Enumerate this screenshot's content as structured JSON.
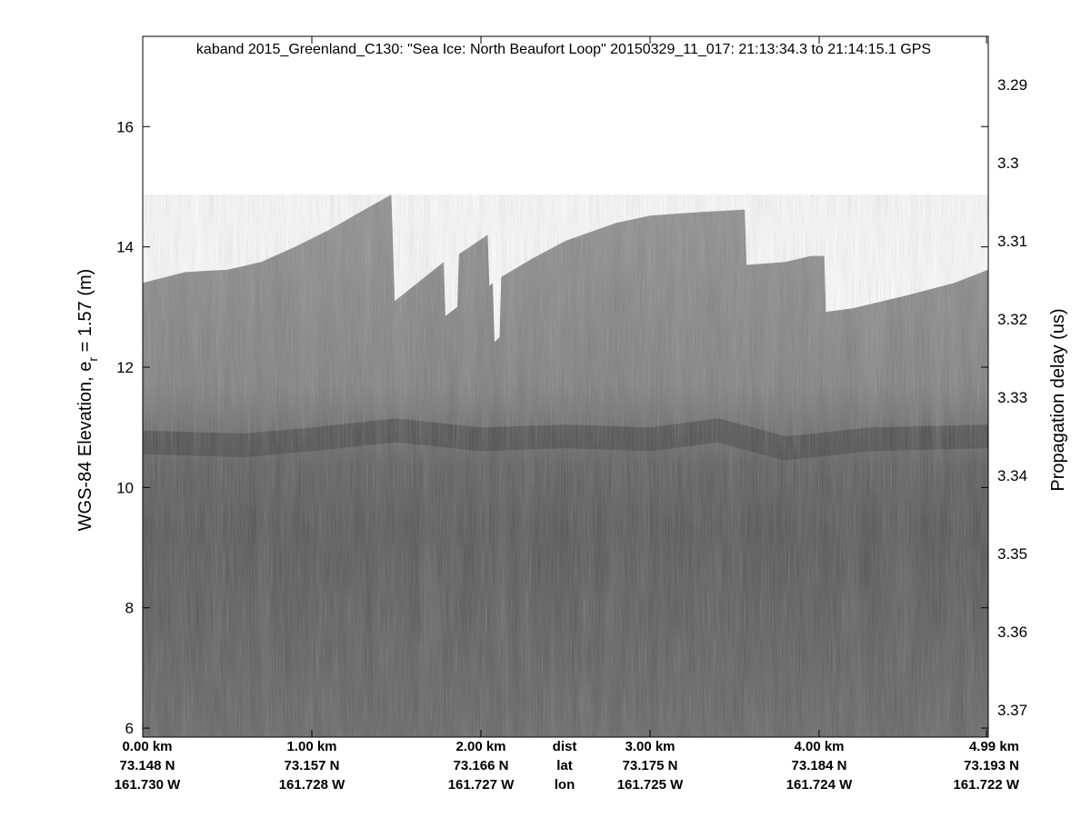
{
  "chart_data": {
    "type": "heatmap",
    "title": "kaband 2015_Greenland_C130: \"Sea Ice: North Beaufort Loop\"  20150329_11_017: 21:13:34.3 to 21:14:15.1 GPS",
    "ylabel_main": "WGS-84 Elevation, e",
    "ylabel_sub": "r",
    "ylabel_tail": " = 1.57 (m)",
    "y2label": "Propagation delay (us)",
    "ylim": [
      5.85,
      17.5
    ],
    "xlim_km": [
      0,
      5.0
    ],
    "y_ticks": [
      "6",
      "8",
      "10",
      "12",
      "14",
      "16"
    ],
    "y_tick_values": [
      6,
      8,
      10,
      12,
      14,
      16
    ],
    "y2_ticks": [
      "3.29",
      "3.3",
      "3.31",
      "3.32",
      "3.33",
      "3.34",
      "3.35",
      "3.36",
      "3.37"
    ],
    "y2_tick_elev": [
      16.7,
      15.4,
      14.1,
      12.8,
      11.5,
      10.2,
      8.9,
      7.6,
      6.3
    ],
    "x_tick_km": [
      0,
      1,
      2,
      3,
      4,
      4.99
    ],
    "x_rows": [
      [
        "0.00 km",
        "1.00 km",
        "2.00 km",
        "3.00 km",
        "4.00 km",
        "4.99 km"
      ],
      [
        "73.148 N",
        "73.157 N",
        "73.166 N",
        "73.175 N",
        "73.184 N",
        "73.193 N"
      ],
      [
        "161.730 W",
        "161.728 W",
        "161.727 W",
        "161.725 W",
        "161.724 W",
        "161.722 W"
      ]
    ],
    "row_labels": [
      "dist",
      "lat",
      "lon"
    ],
    "surface_profile_km_elev": [
      [
        0.0,
        13.4
      ],
      [
        0.25,
        13.58
      ],
      [
        0.5,
        13.62
      ],
      [
        0.7,
        13.75
      ],
      [
        0.9,
        14.0
      ],
      [
        1.1,
        14.28
      ],
      [
        1.3,
        14.6
      ],
      [
        1.47,
        14.87
      ],
      [
        1.48,
        14.0
      ],
      [
        1.49,
        13.1
      ],
      [
        1.78,
        13.75
      ],
      [
        1.79,
        12.85
      ],
      [
        1.86,
        13.0
      ],
      [
        1.87,
        13.88
      ],
      [
        2.04,
        14.2
      ],
      [
        2.05,
        13.35
      ],
      [
        2.07,
        13.4
      ],
      [
        2.08,
        12.42
      ],
      [
        2.11,
        12.5
      ],
      [
        2.12,
        13.5
      ],
      [
        2.3,
        13.8
      ],
      [
        2.5,
        14.1
      ],
      [
        2.8,
        14.4
      ],
      [
        3.0,
        14.52
      ],
      [
        3.3,
        14.58
      ],
      [
        3.56,
        14.62
      ],
      [
        3.57,
        13.7
      ],
      [
        3.8,
        13.75
      ],
      [
        3.95,
        13.85
      ],
      [
        4.03,
        13.85
      ],
      [
        4.04,
        12.92
      ],
      [
        4.2,
        12.98
      ],
      [
        4.5,
        13.18
      ],
      [
        4.8,
        13.4
      ],
      [
        5.0,
        13.62
      ]
    ],
    "interfaces": [
      {
        "name": "",
        "km_elev": [
          [
            0.0,
            10.75
          ],
          [
            0.6,
            10.7
          ],
          [
            1.0,
            10.8
          ],
          [
            1.5,
            10.95
          ],
          [
            2.0,
            10.8
          ],
          [
            2.5,
            10.85
          ],
          [
            3.0,
            10.8
          ],
          [
            3.4,
            10.95
          ],
          [
            3.8,
            10.65
          ],
          [
            4.3,
            10.8
          ],
          [
            5.0,
            10.85
          ]
        ]
      }
    ],
    "colormap": "grayscale",
    "grid": false,
    "legend": "none"
  }
}
